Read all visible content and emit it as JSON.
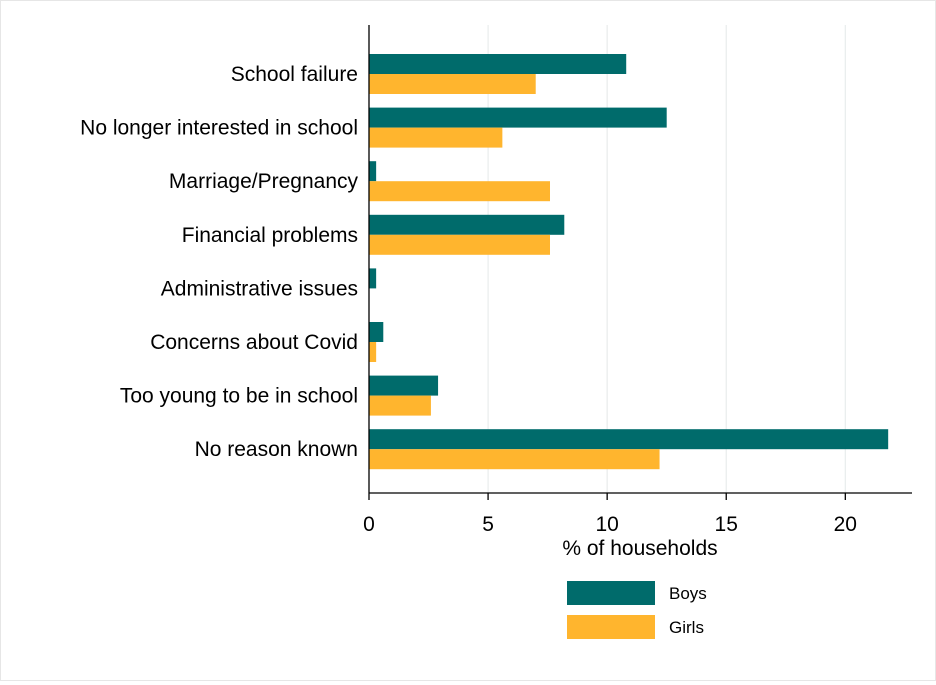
{
  "chart_data": {
    "type": "bar",
    "orientation": "horizontal",
    "categories": [
      "School failure",
      "No longer interested in school",
      "Marriage/Pregnancy",
      "Financial problems",
      "Administrative issues",
      "Concerns about Covid",
      "Too young to be in school",
      "No reason known"
    ],
    "series": [
      {
        "name": "Boys",
        "color": "#006b6b",
        "values": [
          10.8,
          12.5,
          0.3,
          8.2,
          0.3,
          0.6,
          2.9,
          21.8
        ]
      },
      {
        "name": "Girls",
        "color": "#ffb52e",
        "values": [
          7.0,
          5.6,
          7.6,
          7.6,
          0.0,
          0.3,
          2.6,
          12.2
        ]
      }
    ],
    "title": "",
    "xlabel": "% of households",
    "ylabel": "",
    "xlim": [
      0,
      22.8
    ],
    "xticks": [
      0,
      5,
      10,
      15,
      20
    ],
    "grid": "vertical",
    "legend": "bottom"
  }
}
